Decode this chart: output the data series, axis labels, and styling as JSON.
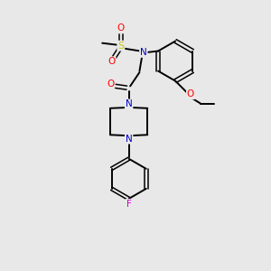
{
  "bg_color": "#e8e8e8",
  "atom_colors": {
    "C": "#000000",
    "N": "#0000cc",
    "O": "#ff0000",
    "S": "#cccc00",
    "F": "#cc00cc",
    "H": "#000000"
  },
  "bond_color": "#000000",
  "lw": 1.4,
  "lw_d": 1.1,
  "doff": 0.07,
  "fs": 7.5
}
